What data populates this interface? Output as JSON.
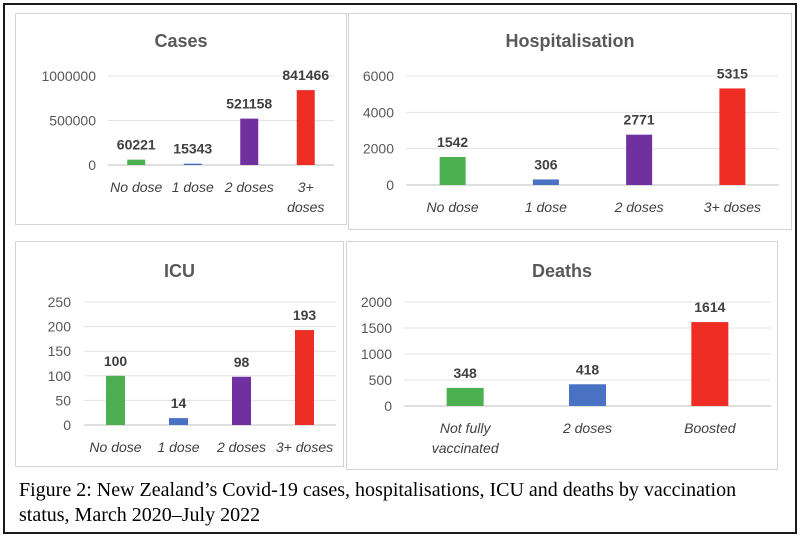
{
  "figure_caption": "Figure 2: New Zealand’s Covid-19 cases, hospitalisations, ICU and deaths by vaccination status, March 2020–July 2022",
  "chart_data": [
    {
      "type": "bar",
      "title": "Cases",
      "categories": [
        "No dose",
        "1 dose",
        "2 doses",
        "3+ doses"
      ],
      "values": [
        60221,
        15343,
        521158,
        841466
      ],
      "colors": [
        "#4cb050",
        "#4a72c4",
        "#7030a0",
        "#ee2e24"
      ],
      "yticks": [
        0,
        500000,
        1000000
      ],
      "ylim": [
        0,
        1000000
      ],
      "grid": true
    },
    {
      "type": "bar",
      "title": "Hospitalisation",
      "categories": [
        "No dose",
        "1 dose",
        "2 doses",
        "3+ doses"
      ],
      "values": [
        1542,
        306,
        2771,
        5315
      ],
      "colors": [
        "#4cb050",
        "#4a72c4",
        "#7030a0",
        "#ee2e24"
      ],
      "yticks": [
        0,
        2000,
        4000,
        6000
      ],
      "ylim": [
        0,
        6000
      ],
      "grid": true
    },
    {
      "type": "bar",
      "title": "ICU",
      "categories": [
        "No dose",
        "1 dose",
        "2 doses",
        "3+ doses"
      ],
      "values": [
        100,
        14,
        98,
        193
      ],
      "colors": [
        "#4cb050",
        "#4a72c4",
        "#7030a0",
        "#ee2e24"
      ],
      "yticks": [
        0,
        50,
        100,
        150,
        200,
        250
      ],
      "ylim": [
        0,
        250
      ],
      "grid": true
    },
    {
      "type": "bar",
      "title": "Deaths",
      "categories": [
        "Not fully vaccinated",
        "2 doses",
        "Boosted"
      ],
      "values": [
        348,
        418,
        1614
      ],
      "colors": [
        "#4cb050",
        "#4a72c4",
        "#ee2e24"
      ],
      "yticks": [
        0,
        500,
        1000,
        1500,
        2000
      ],
      "ylim": [
        0,
        2000
      ],
      "grid": true
    }
  ]
}
